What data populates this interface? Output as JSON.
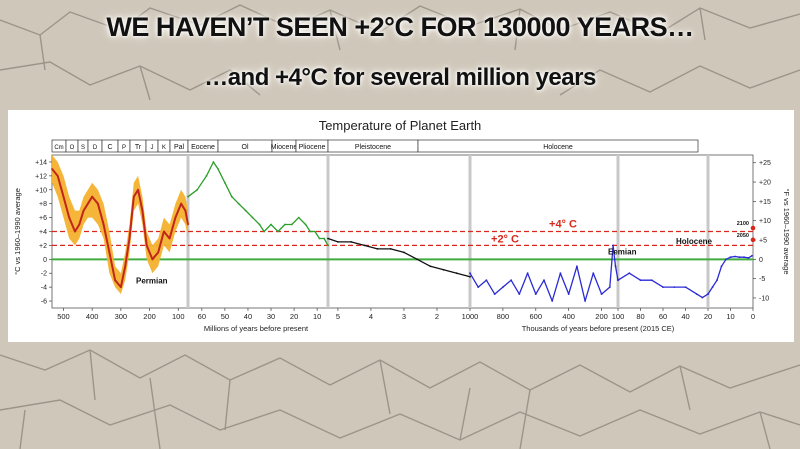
{
  "headline_1": "WE HAVEN’T SEEN +2°C FOR 130000 YEARS…",
  "headline_2": "…and +4°C for several million years",
  "colors": {
    "zero_line": "#3fae3f",
    "threshold_line": "#d8281c",
    "label_red": "#d8281c",
    "band_orange": "#f4b12e",
    "mean_red": "#c0261b",
    "green_series": "#2aa02a",
    "black_series": "#111111",
    "blue_series": "#2a2ad6",
    "light_blue_series": "#9fd7e6",
    "background_ground": "#cfc7ba",
    "background_cracks": "#8c8478"
  },
  "chart_data": {
    "type": "line",
    "title": "Temperature of Planet Earth",
    "ylabel_left": "°C vs 1960–1990 average",
    "ylabel_right": "°F vs 1960–1990 average",
    "left_ticks": [
      "+14",
      "+12",
      "+10",
      "+8",
      "+6",
      "+4",
      "+2",
      "0",
      "-2",
      "-4",
      "-6"
    ],
    "right_ticks": [
      "+25",
      "+20",
      "+15",
      "+10",
      "+5",
      "0",
      "-5",
      "-10"
    ],
    "ylim_c": [
      -7,
      15
    ],
    "grid": false,
    "periods": [
      "Cm",
      "O",
      "S",
      "D",
      "C",
      "P",
      "Tr",
      "J",
      "K",
      "Pal",
      "Eocene",
      "Ol",
      "Miocene",
      "Pliocene",
      "Pleistocene",
      "Holocene"
    ],
    "x_segments": [
      {
        "name": "Millions of years before present",
        "ticks": [
          "500",
          "400",
          "300",
          "200",
          "100"
        ],
        "range": [
          540,
          66
        ],
        "unit": "Ma"
      },
      {
        "name": "Millions of years before present",
        "ticks": [
          "60",
          "50",
          "40",
          "30",
          "20",
          "10"
        ],
        "range": [
          66,
          5.3
        ],
        "unit": "Ma"
      },
      {
        "name": "",
        "ticks": [
          "5",
          "4",
          "3",
          "2",
          "1000"
        ],
        "range": [
          5.3,
          1.0
        ],
        "unit": "Ma"
      },
      {
        "name": "Thousands of years before present (2015 CE)",
        "ticks": [
          "800",
          "600",
          "400",
          "200",
          "100"
        ],
        "range": [
          1000,
          100
        ],
        "unit": "ka"
      },
      {
        "name": "",
        "ticks": [
          "80",
          "60",
          "40",
          "20"
        ],
        "range": [
          100,
          20
        ],
        "unit": "ka"
      },
      {
        "name": "",
        "ticks": [
          "10",
          "0"
        ],
        "range": [
          20,
          0
        ],
        "unit": "ka"
      }
    ],
    "axis_titles": [
      "Millions of years before present",
      "Thousands of years before present (2015 CE)"
    ],
    "reference_lines": [
      {
        "label": "+4° C",
        "value_c": 4
      },
      {
        "label": "+2° C",
        "value_c": 2
      },
      {
        "label": "",
        "value_c": 0
      }
    ],
    "annotations": [
      "Permian",
      "Eemian",
      "Holocene",
      "2100",
      "2050"
    ],
    "series": [
      {
        "name": "",
        "color_key": "mean_red",
        "segment": 0,
        "x": [
          540,
          520,
          500,
          480,
          460,
          445,
          430,
          415,
          400,
          380,
          360,
          340,
          320,
          300,
          285,
          270,
          255,
          240,
          225,
          210,
          190,
          170,
          150,
          130,
          110,
          90,
          75,
          66
        ],
        "y": [
          13,
          12,
          9,
          6,
          4,
          5,
          7,
          8,
          9,
          8,
          5,
          1,
          -3,
          -4,
          -1,
          3,
          9,
          10,
          7,
          2,
          0,
          1,
          4,
          3,
          6,
          8,
          7,
          5
        ],
        "band_low": [
          11,
          9,
          6,
          3,
          2,
          3,
          5,
          6,
          6,
          5,
          3,
          -2,
          -4,
          -5,
          -3,
          1,
          7,
          8,
          5,
          0,
          -2,
          -1,
          2,
          1,
          4,
          6,
          5,
          3
        ],
        "band_high": [
          15,
          14,
          12,
          9,
          7,
          7,
          9,
          10,
          11,
          10,
          8,
          4,
          -1,
          -2,
          1,
          5,
          11,
          12,
          9,
          4,
          2,
          3,
          6,
          5,
          8,
          10,
          9,
          7
        ]
      },
      {
        "name": "",
        "color_key": "green_series",
        "segment": 1,
        "x": [
          66,
          62,
          58,
          55,
          53,
          50,
          47,
          44,
          41,
          38,
          35,
          33,
          30,
          27,
          24,
          21,
          18,
          15,
          13,
          11,
          9,
          7,
          5.3
        ],
        "y": [
          9,
          10,
          12,
          14,
          13,
          11,
          9,
          8,
          7,
          6,
          5,
          4,
          5,
          4,
          5,
          5,
          6,
          5,
          4,
          4,
          3,
          3,
          2
        ]
      },
      {
        "name": "",
        "color_key": "black_series",
        "segment": 2,
        "x": [
          5.3,
          5.0,
          4.6,
          4.2,
          3.8,
          3.4,
          3.0,
          2.6,
          2.2,
          1.8,
          1.4,
          1.0
        ],
        "y": [
          3,
          2.5,
          2.5,
          2,
          1.5,
          1.5,
          1,
          0,
          -1,
          -1.5,
          -2,
          -2.5
        ]
      },
      {
        "name": "",
        "color_key": "blue_series",
        "segment": 3,
        "x": [
          1000,
          950,
          900,
          850,
          800,
          750,
          700,
          650,
          600,
          550,
          500,
          450,
          400,
          350,
          300,
          250,
          200,
          150,
          130,
          115,
          100
        ],
        "y": [
          -2,
          -4,
          -3,
          -5,
          -4,
          -3,
          -5,
          -2,
          -5,
          -3,
          -6,
          -2,
          -5,
          -1,
          -6,
          -2,
          -5,
          -4,
          2,
          -1,
          -3
        ]
      },
      {
        "name": "",
        "color_key": "blue_series",
        "segment": 4,
        "x": [
          100,
          90,
          80,
          70,
          60,
          50,
          40,
          30,
          25,
          20
        ],
        "y": [
          -3,
          -2,
          -3,
          -3,
          -4,
          -4,
          -4,
          -5,
          -5.5,
          -5
        ]
      },
      {
        "name": "",
        "color_key": "blue_series",
        "segment": 5,
        "x": [
          20,
          18,
          16,
          14,
          12,
          10,
          8,
          6,
          4,
          2,
          0.5
        ],
        "y": [
          -5,
          -4,
          -3,
          -1,
          0,
          0.3,
          0.4,
          0.3,
          0.3,
          0.2,
          0.5
        ]
      }
    ],
    "projections": [
      {
        "label": "2100",
        "value_c": 4.5
      },
      {
        "label": "2050",
        "value_c": 2.8
      }
    ]
  }
}
